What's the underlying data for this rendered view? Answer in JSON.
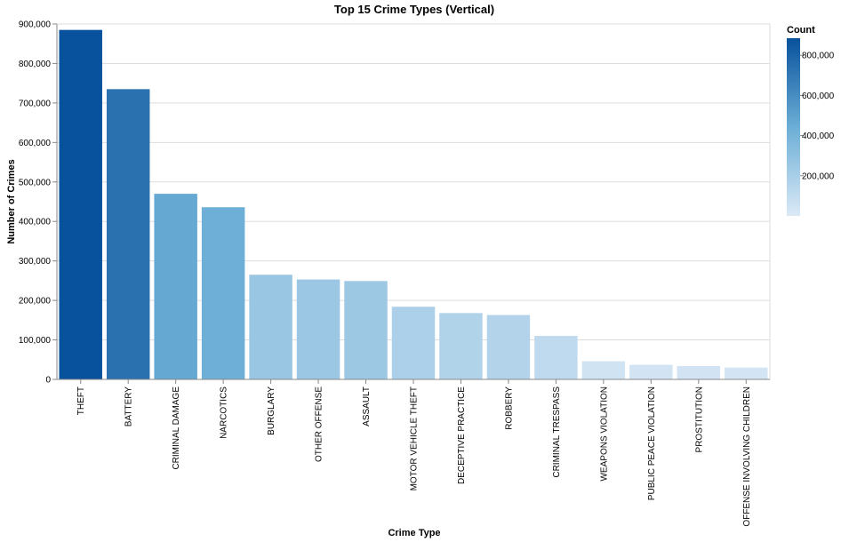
{
  "chart_data": {
    "type": "bar",
    "title": "Top 15 Crime Types (Vertical)",
    "xlabel": "Crime Type",
    "ylabel": "Number of Crimes",
    "ylim": [
      0,
      900000
    ],
    "y_ticks": [
      0,
      100000,
      200000,
      300000,
      400000,
      500000,
      600000,
      700000,
      800000,
      900000
    ],
    "y_tick_labels": [
      "0",
      "100,000",
      "200,000",
      "300,000",
      "400,000",
      "500,000",
      "600,000",
      "700,000",
      "800,000",
      "900,000"
    ],
    "grid": true,
    "categories": [
      "THEFT",
      "BATTERY",
      "CRIMINAL DAMAGE",
      "NARCOTICS",
      "BURGLARY",
      "OTHER OFFENSE",
      "ASSAULT",
      "MOTOR VEHICLE THEFT",
      "DECEPTIVE PRACTICE",
      "ROBBERY",
      "CRIMINAL TRESPASS",
      "WEAPONS VIOLATION",
      "PUBLIC PEACE VIOLATION",
      "PROSTITUTION",
      "OFFENSE INVOLVING CHILDREN"
    ],
    "values": [
      885000,
      735000,
      470000,
      436000,
      265000,
      253000,
      249000,
      184000,
      168000,
      163000,
      110000,
      46000,
      37000,
      34000,
      30000
    ],
    "legend": {
      "title": "Count",
      "placement": "top-right",
      "domain": [
        0,
        885000
      ],
      "ticks": [
        200000,
        400000,
        600000,
        800000
      ],
      "tick_labels": [
        "200,000",
        "400,000",
        "600,000",
        "800,000"
      ],
      "color_low": "#dbe9f6",
      "color_mid": "#6baed6",
      "color_high": "#08519c"
    }
  }
}
